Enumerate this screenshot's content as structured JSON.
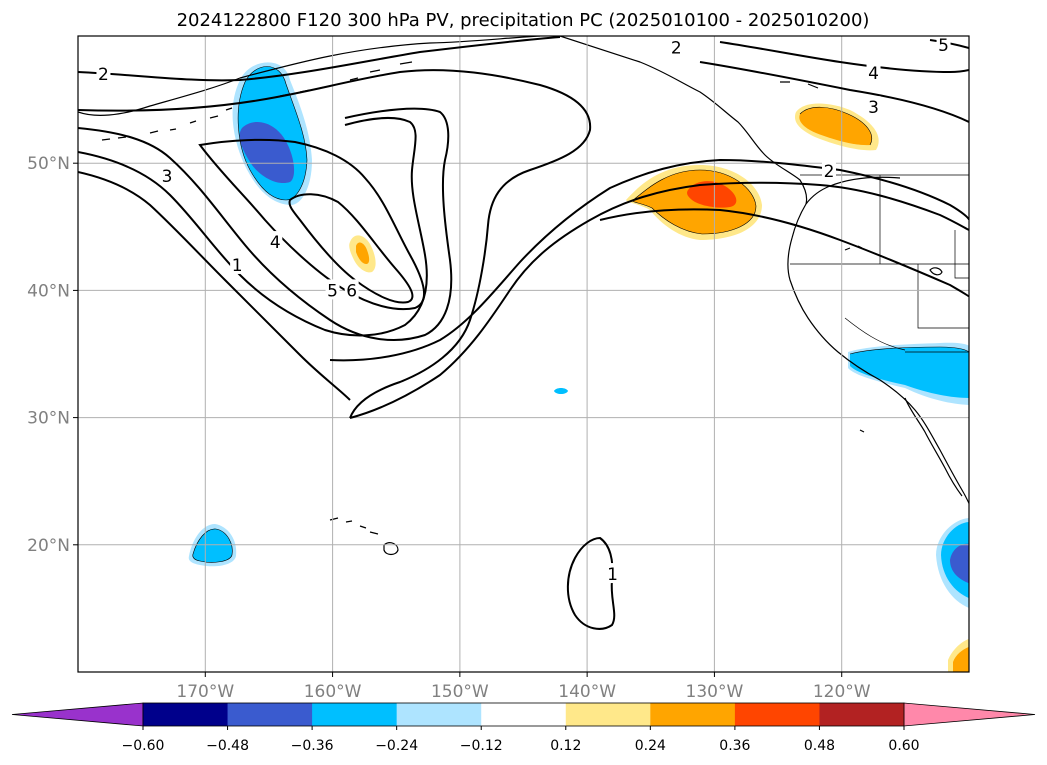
{
  "chart_data": {
    "type": "map",
    "title": "2024122800 F120 300 hPa PV, precipitation PC (2025010100 - 2025010200)",
    "projection": "PlateCarree",
    "extent": {
      "lon": [
        -180,
        -110
      ],
      "lat": [
        10,
        60
      ]
    },
    "grid": true,
    "lon_ticks": [
      {
        "value": -170,
        "label": "170°W"
      },
      {
        "value": -160,
        "label": "160°W"
      },
      {
        "value": -150,
        "label": "150°W"
      },
      {
        "value": -140,
        "label": "140°W"
      },
      {
        "value": -130,
        "label": "130°W"
      },
      {
        "value": -120,
        "label": "120°W"
      }
    ],
    "lat_ticks": [
      {
        "value": 20,
        "label": "20°N"
      },
      {
        "value": 30,
        "label": "30°N"
      },
      {
        "value": 40,
        "label": "40°N"
      },
      {
        "value": 50,
        "label": "50°N"
      }
    ],
    "colorbar": {
      "orientation": "horizontal",
      "extend": "both",
      "boundaries": [
        -0.6,
        -0.48,
        -0.36,
        -0.24,
        -0.12,
        0.12,
        0.24,
        0.36,
        0.48,
        0.6
      ],
      "tick_labels": [
        "−0.60",
        "−0.48",
        "−0.36",
        "−0.24",
        "−0.12",
        "0.12",
        "0.24",
        "0.36",
        "0.48",
        "0.60"
      ],
      "under_color": "#9932cc",
      "over_color": "#ff88aa",
      "colors": [
        "#00008b",
        "#3a5bcf",
        "#00bfff",
        "#aee4ff",
        "#ffffff",
        "#ffe88a",
        "#ffa500",
        "#ff4500",
        "#b22222"
      ]
    },
    "pv_contour_labels": [
      {
        "text": "2",
        "lon": -178,
        "lat": 57
      },
      {
        "text": "3",
        "lon": -173,
        "lat": 49
      },
      {
        "text": "4",
        "lon": -164.5,
        "lat": 43.8
      },
      {
        "text": "1",
        "lon": -167.5,
        "lat": 42
      },
      {
        "text": "5",
        "lon": -160,
        "lat": 40
      },
      {
        "text": "6",
        "lon": -158.5,
        "lat": 40
      },
      {
        "text": "2",
        "lon": -133,
        "lat": 59.1
      },
      {
        "text": "4",
        "lon": -117.5,
        "lat": 57.1
      },
      {
        "text": "3",
        "lon": -117.5,
        "lat": 54.4
      },
      {
        "text": "5",
        "lon": -112,
        "lat": 59.3
      },
      {
        "text": "2",
        "lon": -121,
        "lat": 49.4
      },
      {
        "text": "1",
        "lon": -138,
        "lat": 17.7
      }
    ],
    "precip_pc_anomalies": [
      {
        "sign": "negative",
        "max_level": -0.48,
        "region": "North Pacific near 165°W, 48–58°N"
      },
      {
        "sign": "negative",
        "max_level": -0.36,
        "region": "near 170°W, 19–21°N"
      },
      {
        "sign": "negative",
        "max_level": -0.36,
        "region": "Southern California / Baja, 33–36°N"
      },
      {
        "sign": "negative",
        "max_level": -0.48,
        "region": "Mexico coast near 19°N, 111°W"
      },
      {
        "sign": "positive",
        "max_level": 0.36,
        "region": "off Pacific Northwest near 131°W, 47°N"
      },
      {
        "sign": "positive",
        "max_level": 0.24,
        "region": "Gulf of Alaska near 124°W, 54°N"
      },
      {
        "sign": "positive",
        "max_level": 0.24,
        "region": "near 158°W, 42–44°N"
      },
      {
        "sign": "positive",
        "max_level": 0.24,
        "region": "near 110°W, 12°N"
      }
    ]
  }
}
